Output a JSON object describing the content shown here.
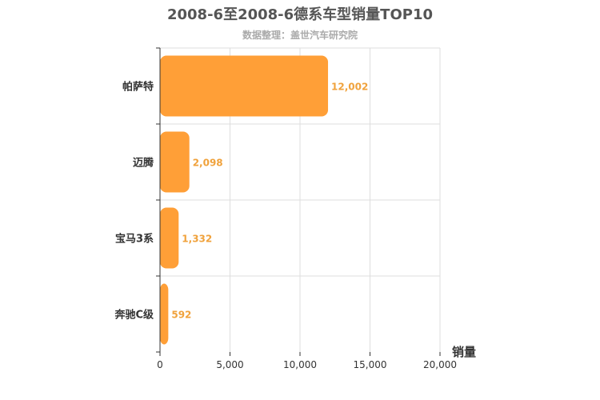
{
  "chart_data": {
    "type": "bar",
    "orientation": "horizontal",
    "title": "2008-6至2008-6德系车型销量TOP10",
    "subtitle": "数据整理：盖世汽车研究院",
    "xlabel": "销量",
    "ylabel": "",
    "categories": [
      "帕萨特",
      "迈腾",
      "宝马3系",
      "奔驰C级"
    ],
    "values": [
      12002,
      2098,
      1332,
      592
    ],
    "value_labels": [
      "12,002",
      "2,098",
      "1,332",
      "592"
    ],
    "xlim": [
      0,
      20000
    ],
    "xticks": [
      0,
      5000,
      10000,
      15000,
      20000
    ],
    "xtick_labels": [
      "0",
      "5,000",
      "10,000",
      "15,000",
      "20,000"
    ],
    "grid": true,
    "legend": "none",
    "colors": {
      "bar": "#ff9f37",
      "value_label": "#f0a23c",
      "title": "#555555",
      "subtitle": "#aaaaaa",
      "axis_text": "#333333",
      "grid": "#dddddd",
      "axis": "#333333"
    }
  }
}
